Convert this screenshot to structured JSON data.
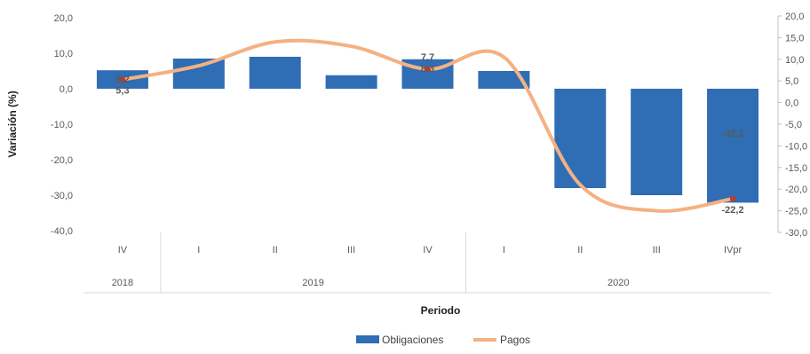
{
  "chart_data": {
    "type": "bar+line",
    "categories": [
      "IV",
      "I",
      "II",
      "III",
      "IV",
      "I",
      "II",
      "III",
      "IVpr"
    ],
    "groups": [
      {
        "label": "2018",
        "span": 1
      },
      {
        "label": "2019",
        "span": 4
      },
      {
        "label": "2020",
        "span": 4
      }
    ],
    "series": [
      {
        "name": "Obligaciones",
        "kind": "bar",
        "axis": "left",
        "color": "#2f6db5",
        "values": [
          5.2,
          8.5,
          9.0,
          3.8,
          8.3,
          5.0,
          -28.0,
          -30.0,
          -32.1
        ]
      },
      {
        "name": "Pagos",
        "kind": "line",
        "axis": "right",
        "color": "#f4b183",
        "values": [
          5.3,
          8.5,
          14.0,
          13.0,
          7.7,
          10.5,
          -19.0,
          -25.0,
          -22.2
        ]
      }
    ],
    "data_labels": [
      {
        "series": "Obligaciones",
        "index": 0,
        "text": "5,2"
      },
      {
        "series": "Pagos",
        "index": 0,
        "text": "5,3"
      },
      {
        "series": "Obligaciones",
        "index": 4,
        "text": "8,3"
      },
      {
        "series": "Pagos",
        "index": 4,
        "text": "7,7"
      },
      {
        "series": "Obligaciones",
        "index": 8,
        "text": "-32,1"
      },
      {
        "series": "Pagos",
        "index": 8,
        "text": "-22,2"
      }
    ],
    "ylabel": "Variación (%)",
    "xlabel": "Periodo",
    "y_left": {
      "min": -40,
      "max": 20,
      "step": 10,
      "ticks": [
        "20,0",
        "10,0",
        "0,0",
        "-10,0",
        "-20,0",
        "-30,0",
        "-40,0"
      ]
    },
    "y_right": {
      "min": -30,
      "max": 20,
      "step": 5,
      "ticks": [
        "20,0",
        "15,0",
        "10,0",
        "5,0",
        "0,0",
        "-5,0",
        "-10,0",
        "-15,0",
        "-20,0",
        "-25,0",
        "-30,0"
      ]
    },
    "legend": {
      "position": "bottom",
      "items": [
        "Obligaciones",
        "Pagos"
      ]
    },
    "grid": false
  }
}
